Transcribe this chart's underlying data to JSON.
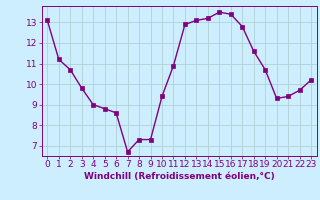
{
  "x": [
    0,
    1,
    2,
    3,
    4,
    5,
    6,
    7,
    8,
    9,
    10,
    11,
    12,
    13,
    14,
    15,
    16,
    17,
    18,
    19,
    20,
    21,
    22,
    23
  ],
  "y": [
    13.1,
    11.2,
    10.7,
    9.8,
    9.0,
    8.8,
    8.6,
    6.7,
    7.3,
    7.3,
    9.4,
    10.9,
    12.9,
    13.1,
    13.2,
    13.5,
    13.4,
    12.8,
    11.6,
    10.7,
    9.3,
    9.4,
    9.7,
    10.2
  ],
  "color": "#800080",
  "bg_color": "#cceeff",
  "grid_color": "#aacccc",
  "xlabel": "Windchill (Refroidissement éolien,°C)",
  "ylim": [
    6.5,
    13.8
  ],
  "xlim": [
    -0.5,
    23.5
  ],
  "yticks": [
    7,
    8,
    9,
    10,
    11,
    12,
    13
  ],
  "xticks": [
    0,
    1,
    2,
    3,
    4,
    5,
    6,
    7,
    8,
    9,
    10,
    11,
    12,
    13,
    14,
    15,
    16,
    17,
    18,
    19,
    20,
    21,
    22,
    23
  ],
  "marker": "s",
  "markersize": 2.5,
  "linewidth": 1.0,
  "xlabel_fontsize": 6.5,
  "tick_fontsize": 6.5,
  "axis_color": "#800080"
}
